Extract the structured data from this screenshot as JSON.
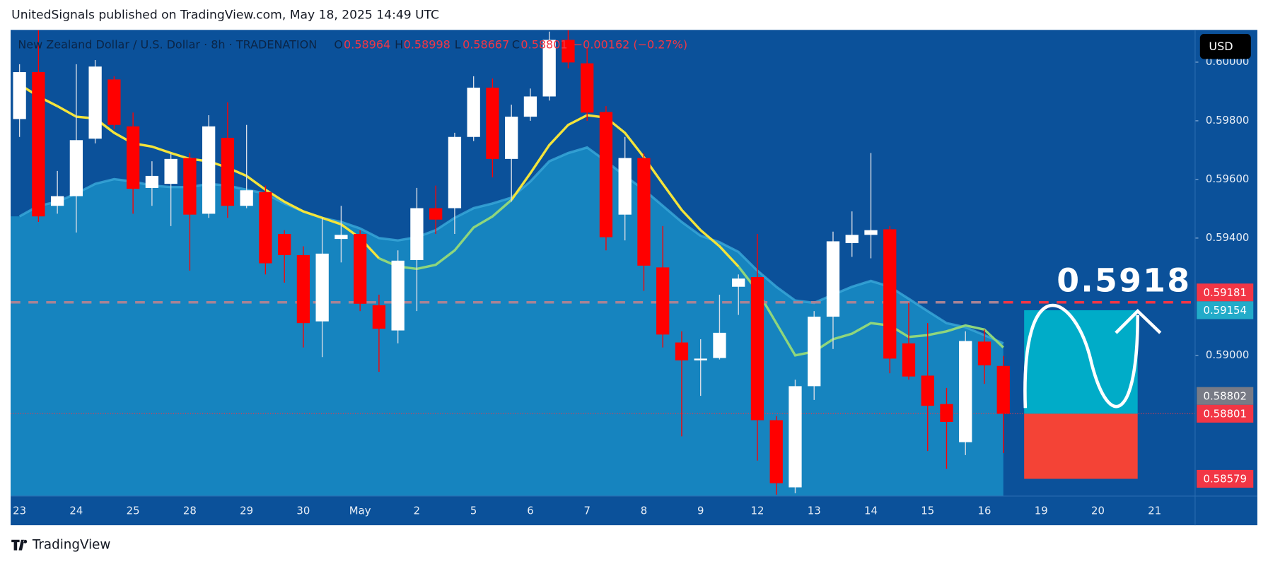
{
  "header": "UnitedSignals published on TradingView.com, May 18, 2025 14:49 UTC",
  "footer": "TradingView",
  "chart_data": {
    "type": "candlestick",
    "title": "New Zealand Dollar / U.S. Dollar · 8h · TRADENATION",
    "header_labels": {
      "o": "O",
      "h": "H",
      "l": "L",
      "c": "C"
    },
    "change": "−0.00162 (−0.27%)",
    "currency": "USD",
    "annotation": "0.5918",
    "categories": [
      "23",
      null,
      null,
      "24",
      null,
      null,
      "25",
      null,
      null,
      "28",
      null,
      null,
      "29",
      null,
      null,
      "30",
      null,
      null,
      "May",
      null,
      null,
      "2",
      null,
      null,
      "5",
      null,
      null,
      "6",
      null,
      null,
      "7",
      null,
      null,
      "8",
      null,
      null,
      "9",
      null,
      null,
      "12",
      null,
      null,
      "13",
      null,
      null,
      "14",
      null,
      null,
      "15",
      null,
      null,
      "16",
      null,
      null,
      "19",
      null,
      null,
      "20",
      null,
      null,
      "21",
      null,
      null
    ],
    "open": [
      0.59806,
      0.59966,
      0.5951,
      0.59543,
      0.59739,
      0.59941,
      0.59781,
      0.59571,
      0.59585,
      0.59673,
      0.59483,
      0.59742,
      0.5951,
      0.59557,
      0.59414,
      0.59342,
      0.59116,
      0.59397,
      0.59414,
      0.59171,
      0.59085,
      0.59325,
      0.59502,
      0.59502,
      0.59745,
      0.59913,
      0.5967,
      0.59814,
      0.59883,
      0.60076,
      0.59996,
      0.5983,
      0.5948,
      0.59673,
      0.593,
      0.59044,
      0.58983,
      0.58991,
      0.59234,
      0.59267,
      0.58779,
      0.5855,
      0.58895,
      0.59132,
      0.59383,
      0.59411,
      0.5943,
      0.59041,
      0.58931,
      0.58834,
      0.58704,
      0.59047,
      0.58964,
      null,
      null,
      null,
      null,
      null,
      null,
      null,
      null,
      null,
      null
    ],
    "high": [
      0.59993,
      0.60109,
      0.59629,
      0.59993,
      0.60007,
      0.59952,
      0.59828,
      0.59662,
      0.5969,
      0.5969,
      0.59819,
      0.59863,
      0.59786,
      0.59579,
      0.59427,
      0.59372,
      0.59469,
      0.5951,
      0.59427,
      0.59207,
      0.59358,
      0.59571,
      0.59579,
      0.59759,
      0.59952,
      0.59944,
      0.59855,
      0.5991,
      0.60104,
      0.60109,
      0.60048,
      0.5985,
      0.59745,
      0.5969,
      0.59441,
      0.59082,
      0.59055,
      0.59207,
      0.59276,
      0.59414,
      0.58793,
      0.58917,
      0.59151,
      0.59422,
      0.59491,
      0.5969,
      0.59441,
      0.59179,
      0.5911,
      0.58889,
      0.59082,
      0.59088,
      0.58998,
      null,
      null,
      null,
      null,
      null,
      null,
      null,
      null,
      null,
      null
    ],
    "low": [
      0.59745,
      0.59455,
      0.59483,
      0.59419,
      0.59723,
      0.59772,
      0.59483,
      0.5951,
      0.59441,
      0.59289,
      0.59469,
      0.59469,
      0.59502,
      0.59276,
      0.59248,
      0.59027,
      0.58994,
      0.59317,
      0.59151,
      0.58944,
      0.59041,
      0.59151,
      0.59414,
      0.59414,
      0.59731,
      0.59607,
      0.59524,
      0.598,
      0.59869,
      0.59979,
      0.598,
      0.59358,
      0.59392,
      0.5922,
      0.59027,
      0.58724,
      0.58862,
      0.58986,
      0.59138,
      0.58641,
      0.58525,
      0.5853,
      0.58848,
      0.59022,
      0.59336,
      0.59331,
      0.58939,
      0.58917,
      0.58674,
      0.58613,
      0.5866,
      0.58903,
      0.58667,
      null,
      null,
      null,
      null,
      null,
      null,
      null,
      null,
      null,
      null
    ],
    "close": [
      0.59966,
      0.59474,
      0.59543,
      0.59734,
      0.59985,
      0.59786,
      0.59568,
      0.59612,
      0.5967,
      0.5948,
      0.59781,
      0.5951,
      0.59563,
      0.59314,
      0.59342,
      0.5911,
      0.59347,
      0.59411,
      0.59176,
      0.59091,
      0.59323,
      0.59502,
      0.59463,
      0.59745,
      0.59913,
      0.5967,
      0.59814,
      0.59883,
      0.60076,
      0.59999,
      0.59828,
      0.59403,
      0.59673,
      0.59306,
      0.59071,
      0.58983,
      0.58989,
      0.59077,
      0.59262,
      0.58779,
      0.58564,
      0.58895,
      0.59132,
      0.59389,
      0.59411,
      0.59427,
      0.58989,
      0.58928,
      0.58828,
      0.58773,
      0.59049,
      0.58966,
      0.58801,
      null,
      null,
      null,
      null,
      null,
      null,
      null,
      null,
      null,
      null
    ],
    "up_color": "#ffffff",
    "down_color": "#ff0000",
    "series": [
      {
        "color": "#f4e43a",
        "values": [
          0.59924,
          0.59883,
          0.5985,
          0.59814,
          0.59808,
          0.59759,
          0.59723,
          0.59712,
          0.5969,
          0.5967,
          0.59662,
          0.5964,
          0.59612,
          0.59565,
          0.59524,
          0.59491,
          0.59469,
          0.59447,
          0.594,
          0.59331,
          null,
          null,
          null,
          null,
          null,
          null,
          0.5953,
          0.59621,
          0.59717,
          0.59786,
          0.59819,
          0.59811,
          0.59759,
          0.59676,
          0.59585,
          0.59496,
          0.59427,
          0.59372,
          0.59303,
          null,
          null,
          null,
          null,
          null,
          null,
          null,
          null,
          null,
          null,
          null,
          null,
          null,
          null,
          null,
          null,
          null,
          null,
          null,
          null,
          null,
          null,
          null,
          null
        ]
      },
      {
        "color": "#8fd67c",
        "values": [
          null,
          null,
          null,
          null,
          null,
          null,
          null,
          null,
          null,
          null,
          null,
          null,
          null,
          null,
          null,
          null,
          null,
          null,
          null,
          0.59331,
          0.59303,
          0.59295,
          0.59309,
          0.59358,
          0.59436,
          0.59474,
          0.5953,
          null,
          null,
          null,
          null,
          null,
          null,
          null,
          null,
          null,
          null,
          null,
          0.59303,
          0.5922,
          0.5911,
          0.59,
          0.59013,
          0.59055,
          0.59074,
          0.5911,
          0.59102,
          0.59063,
          0.59069,
          0.59082,
          0.59102,
          0.59088,
          0.59027,
          null,
          null,
          null,
          null,
          null,
          null,
          null,
          null,
          null,
          null
        ]
      }
    ],
    "area": {
      "color": "#1684bf",
      "line_color": "#3aa9d9",
      "values": [
        0.59474,
        0.5951,
        0.59524,
        0.59552,
        0.59585,
        0.59601,
        0.59593,
        0.59579,
        0.59574,
        0.59574,
        0.59585,
        0.59579,
        0.59565,
        0.59552,
        0.59518,
        0.59491,
        0.59469,
        0.59455,
        0.59433,
        0.594,
        0.59392,
        0.59403,
        0.59427,
        0.59469,
        0.59502,
        0.59518,
        0.59538,
        0.59593,
        0.59662,
        0.5969,
        0.59709,
        0.59662,
        0.59612,
        0.59565,
        0.5951,
        0.59455,
        0.59408,
        0.59386,
        0.59353,
        0.59289,
        0.59234,
        0.59187,
        0.59179,
        0.59207,
        0.59234,
        0.59254,
        0.59234,
        0.59193,
        0.59151,
        0.5911,
        0.59096,
        0.59069,
        0.59041,
        null,
        null,
        null,
        null,
        null,
        null,
        null,
        null,
        null,
        null
      ]
    },
    "ylim": [
      0.5852,
      0.6011
    ],
    "yticks": [
      {
        "value": 0.59,
        "label": "0.59000"
      },
      {
        "value": 0.594,
        "label": "0.59400"
      },
      {
        "value": 0.596,
        "label": "0.59600"
      },
      {
        "value": 0.598,
        "label": "0.59800"
      },
      {
        "value": 0.6,
        "label": "0.60000"
      }
    ],
    "price_labels": [
      {
        "value": 0.59181,
        "label": "0.59181",
        "color": "#f23645"
      },
      {
        "value": 0.59154,
        "label": "0.59154",
        "color": "#22abc9"
      },
      {
        "value": 0.58802,
        "label": "0.58802",
        "color": "#787b86"
      },
      {
        "value": 0.58801,
        "label": "0.58801",
        "color": "#f23645"
      },
      {
        "value": 0.58579,
        "label": "0.58579",
        "color": "#f23645"
      }
    ],
    "target_color": "#00acc8",
    "stop_color": "#f44336"
  }
}
